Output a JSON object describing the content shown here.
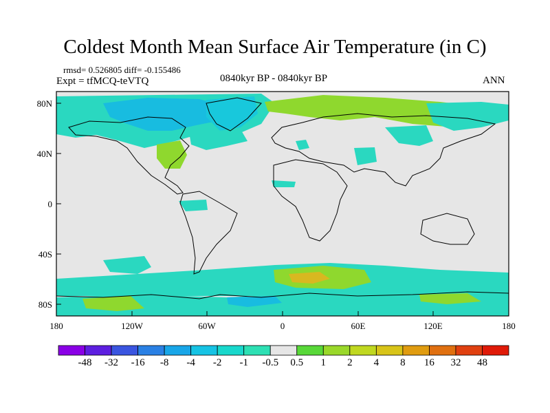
{
  "title": "Coldest Month Mean Surface Air Temperature (in C)",
  "stats": "rmsd= 0.526805 diff= -0.155486",
  "experiment": "Expt = tfMCQ-teVTQ",
  "center_label": "0840kyr BP - 0840kyr BP",
  "season": "ANN",
  "lat_ticks": [
    "80N",
    "40N",
    "0",
    "40S",
    "80S"
  ],
  "lon_ticks": [
    "180",
    "120W",
    "60W",
    "0",
    "60E",
    "120E",
    "180"
  ],
  "colorbar": {
    "labels": [
      "-48",
      "-32",
      "-16",
      "-8",
      "-4",
      "-2",
      "-1",
      "-0.5",
      "0.5",
      "1",
      "2",
      "4",
      "8",
      "16",
      "32",
      "48"
    ],
    "colors": [
      "#8a00e6",
      "#5d1fe0",
      "#3a55e0",
      "#2a80e4",
      "#18a6e8",
      "#16c3e4",
      "#18d8cc",
      "#2de0b4",
      "#e6e6e6",
      "#58d838",
      "#9ad82a",
      "#c0d820",
      "#d8c418",
      "#e09c10",
      "#e07010",
      "#e04010",
      "#e01a08"
    ]
  },
  "background_color": "#e6e6e6"
}
